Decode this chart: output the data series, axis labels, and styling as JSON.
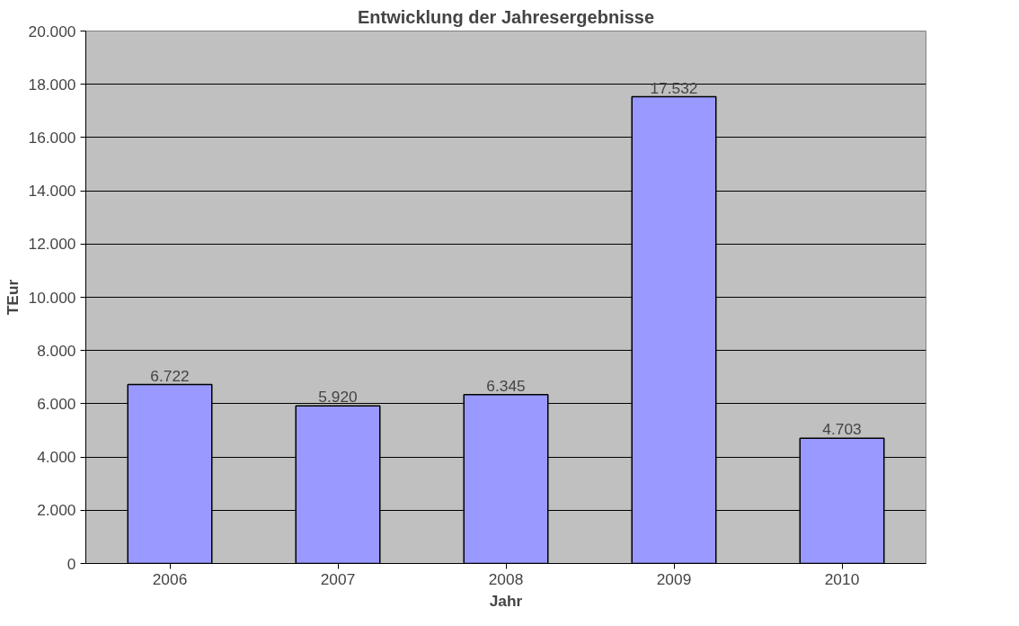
{
  "chart_data": {
    "type": "bar",
    "title": "Entwicklung der Jahresergebnisse",
    "xlabel": "Jahr",
    "ylabel": "TEur",
    "categories": [
      "2006",
      "2007",
      "2008",
      "2009",
      "2010"
    ],
    "values": [
      6722,
      5920,
      6345,
      17532,
      4703
    ],
    "value_labels": [
      "6.722",
      "5.920",
      "6.345",
      "17.532",
      "4.703"
    ],
    "color": "#9999ff",
    "ylim": [
      0,
      20000
    ],
    "yticks": [
      0,
      {
        "value": 2000,
        "label": "2.000"
      },
      {
        "value": 4000,
        "label": "4.000"
      },
      {
        "value": 6000,
        "label": "6.000"
      },
      {
        "value": 8000,
        "label": "8.000"
      },
      {
        "value": 10000,
        "label": "10.000"
      },
      {
        "value": 12000,
        "label": "12.000"
      },
      {
        "value": 14000,
        "label": "14.000"
      },
      {
        "value": 16000,
        "label": "16.000"
      },
      {
        "value": 18000,
        "label": "18.000"
      },
      {
        "value": 20000,
        "label": "20.000"
      }
    ],
    "grid": "y"
  }
}
